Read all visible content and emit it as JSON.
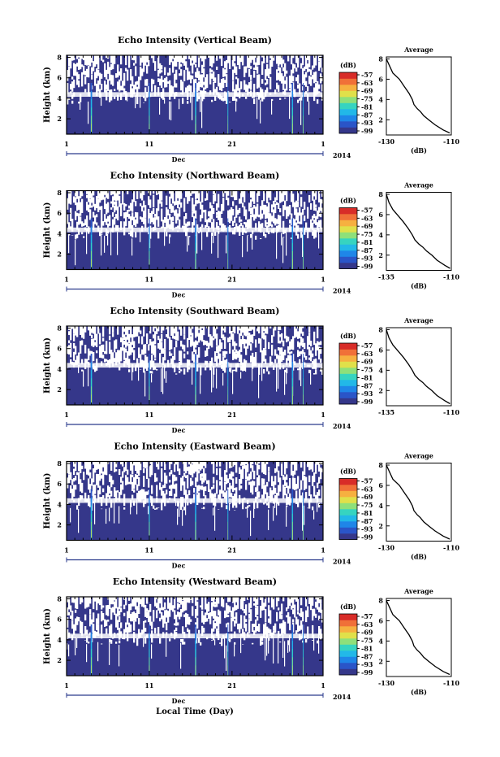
{
  "figure": {
    "xlabel": "Local Time (Day)",
    "month": "Dec",
    "year": "2014",
    "avg_title": "Average"
  },
  "chart_data": [
    {
      "type": "heatmap",
      "title": "Echo Intensity (Vertical Beam)",
      "ylabel": "Height (km)",
      "xticklabels": [
        "1",
        "11",
        "21",
        "1"
      ],
      "yticklabels": [
        "2",
        "4",
        "6",
        "8"
      ],
      "xlim_day": [
        1,
        32
      ],
      "ylim_km": [
        0.5,
        8.2
      ],
      "colorbar": {
        "label": "(dB)",
        "ticks": [
          "-57",
          "-63",
          "-69",
          "-75",
          "-81",
          "-87",
          "-93",
          "-99"
        ]
      },
      "average_profile": {
        "title": "Average",
        "xlabel": "(dB)",
        "xticks": [
          "-130",
          "-110"
        ],
        "yticks": [
          "2",
          "4",
          "6",
          "8"
        ],
        "xlim": [
          -130,
          -110
        ],
        "ylim": [
          0.5,
          8.2
        ],
        "points": [
          [
            -130,
            8.0
          ],
          [
            -129,
            7.3
          ],
          [
            -128,
            6.6
          ],
          [
            -126,
            6.0
          ],
          [
            -124.5,
            5.3
          ],
          [
            -123,
            4.6
          ],
          [
            -122,
            4.0
          ],
          [
            -121.5,
            3.5
          ],
          [
            -120.5,
            3.1
          ],
          [
            -119.5,
            2.8
          ],
          [
            -118.5,
            2.4
          ],
          [
            -117,
            2.0
          ],
          [
            -115,
            1.5
          ],
          [
            -112.5,
            1.0
          ],
          [
            -110.5,
            0.7
          ]
        ]
      }
    },
    {
      "type": "heatmap",
      "title": "Echo Intensity (Northward Beam)",
      "ylabel": "Height (km)",
      "xticklabels": [
        "1",
        "11",
        "21",
        "1"
      ],
      "yticklabels": [
        "2",
        "4",
        "6",
        "8"
      ],
      "xlim_day": [
        1,
        32
      ],
      "ylim_km": [
        0.5,
        8.2
      ],
      "colorbar": {
        "label": "(dB)",
        "ticks": [
          "-57",
          "-63",
          "-69",
          "-75",
          "-81",
          "-87",
          "-93",
          "-99"
        ]
      },
      "average_profile": {
        "title": "Average",
        "xlabel": "(dB)",
        "xticks": [
          "-135",
          "-110"
        ],
        "yticks": [
          "2",
          "4",
          "6",
          "8"
        ],
        "xlim": [
          -135,
          -110
        ],
        "ylim": [
          0.5,
          8.2
        ],
        "points": [
          [
            -135,
            8.0
          ],
          [
            -134,
            7.2
          ],
          [
            -132.5,
            6.5
          ],
          [
            -130.5,
            5.9
          ],
          [
            -128.5,
            5.3
          ],
          [
            -126.5,
            4.6
          ],
          [
            -125,
            4.0
          ],
          [
            -124,
            3.5
          ],
          [
            -122.5,
            3.1
          ],
          [
            -121,
            2.8
          ],
          [
            -119.5,
            2.4
          ],
          [
            -117.5,
            2.0
          ],
          [
            -115.5,
            1.5
          ],
          [
            -112.5,
            1.0
          ],
          [
            -110.5,
            0.7
          ]
        ]
      }
    },
    {
      "type": "heatmap",
      "title": "Echo Intensity (Southward Beam)",
      "ylabel": "Height (km)",
      "xticklabels": [
        "1",
        "11",
        "21",
        "1"
      ],
      "yticklabels": [
        "2",
        "4",
        "6",
        "8"
      ],
      "xlim_day": [
        1,
        32
      ],
      "ylim_km": [
        0.5,
        8.2
      ],
      "colorbar": {
        "label": "(dB)",
        "ticks": [
          "-57",
          "-63",
          "-69",
          "-75",
          "-81",
          "-87",
          "-93",
          "-99"
        ]
      },
      "average_profile": {
        "title": "Average",
        "xlabel": "",
        "xticks": [
          "-135",
          "-110"
        ],
        "yticks": [
          "2",
          "4",
          "6",
          "8"
        ],
        "xlim": [
          -135,
          -110
        ],
        "ylim": [
          0.5,
          8.2
        ],
        "points": [
          [
            -135,
            8.0
          ],
          [
            -134,
            7.2
          ],
          [
            -132.5,
            6.5
          ],
          [
            -130.5,
            5.9
          ],
          [
            -128.5,
            5.3
          ],
          [
            -126.5,
            4.6
          ],
          [
            -125,
            4.0
          ],
          [
            -124,
            3.5
          ],
          [
            -122.5,
            3.1
          ],
          [
            -121,
            2.8
          ],
          [
            -119.5,
            2.4
          ],
          [
            -117.5,
            2.0
          ],
          [
            -115.5,
            1.5
          ],
          [
            -112.5,
            1.0
          ],
          [
            -110.5,
            0.7
          ]
        ]
      }
    },
    {
      "type": "heatmap",
      "title": "Echo Intensity (Eastward Beam)",
      "ylabel": "Height (km)",
      "xticklabels": [
        "1",
        "11",
        "21",
        "1"
      ],
      "yticklabels": [
        "2",
        "4",
        "6",
        "8"
      ],
      "xlim_day": [
        1,
        32
      ],
      "ylim_km": [
        0.5,
        8.2
      ],
      "colorbar": {
        "label": "(dB)",
        "ticks": [
          "-57",
          "-63",
          "-69",
          "-75",
          "-81",
          "-87",
          "-93",
          "-99"
        ]
      },
      "average_profile": {
        "title": "Average",
        "xlabel": "(dB)",
        "xticks": [
          "-130",
          "-110"
        ],
        "yticks": [
          "2",
          "4",
          "6",
          "8"
        ],
        "xlim": [
          -130,
          -110
        ],
        "ylim": [
          0.5,
          8.2
        ],
        "points": [
          [
            -130,
            8.0
          ],
          [
            -129,
            7.3
          ],
          [
            -128,
            6.6
          ],
          [
            -126,
            6.0
          ],
          [
            -124.5,
            5.3
          ],
          [
            -123,
            4.6
          ],
          [
            -122,
            4.0
          ],
          [
            -121.5,
            3.5
          ],
          [
            -120.5,
            3.1
          ],
          [
            -119.5,
            2.8
          ],
          [
            -118.5,
            2.4
          ],
          [
            -117,
            2.0
          ],
          [
            -115,
            1.5
          ],
          [
            -112.5,
            1.0
          ],
          [
            -110.5,
            0.7
          ]
        ]
      }
    },
    {
      "type": "heatmap",
      "title": "Echo Intensity (Westward Beam)",
      "ylabel": "Height (km)",
      "xticklabels": [
        "1",
        "11",
        "21",
        "1"
      ],
      "yticklabels": [
        "2",
        "4",
        "6",
        "8"
      ],
      "xlim_day": [
        1,
        32
      ],
      "ylim_km": [
        0.5,
        8.2
      ],
      "colorbar": {
        "label": "(dB)",
        "ticks": [
          "-57",
          "-63",
          "-69",
          "-75",
          "-81",
          "-87",
          "-93",
          "-99"
        ]
      },
      "average_profile": {
        "title": "Average",
        "xlabel": "(dB)",
        "xticks": [
          "-130",
          "-110"
        ],
        "yticks": [
          "2",
          "4",
          "6",
          "8"
        ],
        "xlim": [
          -130,
          -110
        ],
        "ylim": [
          0.5,
          8.2
        ],
        "points": [
          [
            -130,
            8.0
          ],
          [
            -129,
            7.3
          ],
          [
            -128,
            6.6
          ],
          [
            -126,
            6.0
          ],
          [
            -124.5,
            5.3
          ],
          [
            -123,
            4.6
          ],
          [
            -122,
            4.0
          ],
          [
            -121.5,
            3.5
          ],
          [
            -120.5,
            3.1
          ],
          [
            -119.5,
            2.8
          ],
          [
            -118.5,
            2.4
          ],
          [
            -117,
            2.0
          ],
          [
            -115,
            1.5
          ],
          [
            -112.5,
            1.0
          ],
          [
            -110.5,
            0.7
          ]
        ]
      }
    }
  ],
  "colors": {
    "background": "#35378a",
    "colormap": [
      "#35378a",
      "#2a55c8",
      "#1f86e8",
      "#22b8e8",
      "#36d4c0",
      "#8ee07a",
      "#e0e04a",
      "#f6b040",
      "#f07038",
      "#d82c28"
    ]
  }
}
